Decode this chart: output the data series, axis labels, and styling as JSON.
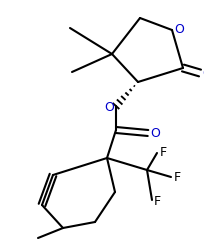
{
  "bg_color": "#ffffff",
  "line_color": "#000000",
  "O_color": "#0000cc",
  "F_color": "#000000",
  "line_width": 1.5,
  "figsize": [
    2.04,
    2.49
  ],
  "dpi": 100,
  "xlim": [
    0,
    204
  ],
  "ylim": [
    0,
    249
  ]
}
